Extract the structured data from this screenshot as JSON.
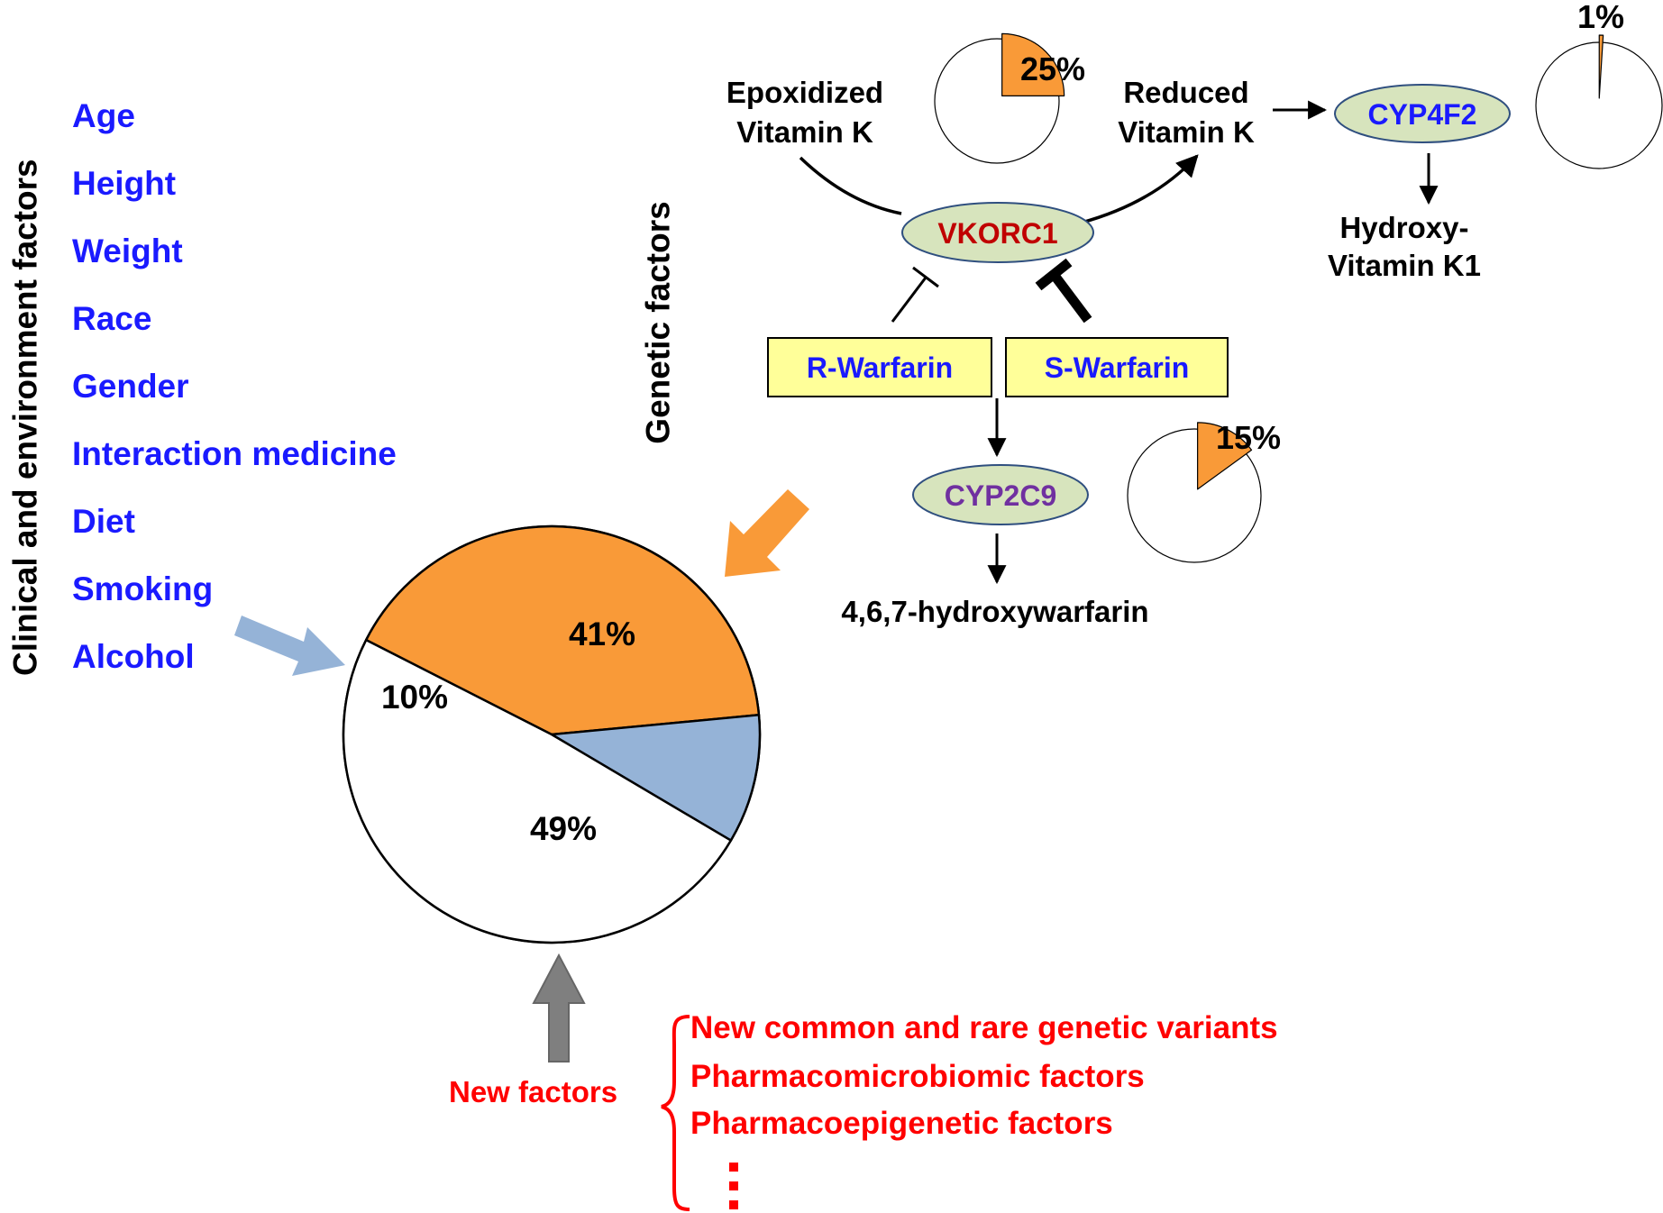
{
  "colors": {
    "genetic": "#f99a38",
    "clinical": "#95b3d7",
    "unknown": "#ffffff",
    "clinical_text": "#1a1aff",
    "new_factor_text": "#ff0000",
    "enzyme_fill": "#d7e4bd",
    "drug_box_fill": "#ffff99",
    "gray_arrow": "#7f7f7f"
  },
  "clinical": {
    "heading": "Clinical and environment factors",
    "items": [
      "Age",
      "Height",
      "Weight",
      "Race",
      "Gender",
      "Interaction medicine",
      "Diet",
      "Smoking",
      "Alcohol"
    ]
  },
  "genetic": {
    "heading": "Genetic factors"
  },
  "pathway": {
    "epoxidized": [
      "Epoxidized",
      "Vitamin K"
    ],
    "reduced": [
      "Reduced",
      "Vitamin K"
    ],
    "hydroxy": [
      "Hydroxy-",
      "Vitamin K1"
    ],
    "hydroxywarfarin": "4,6,7-hydroxywarfarin",
    "vkorc1": "VKORC1",
    "cyp4f2": "CYP4F2",
    "cyp2c9": "CYP2C9",
    "r_warfarin": "R-Warfarin",
    "s_warfarin": "S-Warfarin"
  },
  "new_factors": {
    "label": "New factors",
    "items": [
      "New common and rare genetic variants",
      "Pharmacomicrobiomic factors",
      "Pharmacoepigenetic factors"
    ]
  },
  "chart_data": [
    {
      "type": "pie",
      "slices": [
        {
          "label": "41%",
          "value": 41,
          "color": "#f99a38"
        },
        {
          "label": "10%",
          "value": 10,
          "color": "#95b3d7"
        },
        {
          "label": "49%",
          "value": 49,
          "color": "#ffffff"
        }
      ]
    },
    {
      "type": "pie",
      "slices": [
        {
          "label": "25%",
          "value": 25,
          "color": "#f99a38"
        },
        {
          "value": 75,
          "color": "#ffffff"
        }
      ]
    },
    {
      "type": "pie",
      "slices": [
        {
          "label": "15%",
          "value": 15,
          "color": "#f99a38"
        },
        {
          "value": 85,
          "color": "#ffffff"
        }
      ]
    },
    {
      "type": "pie",
      "slices": [
        {
          "label": "1%",
          "value": 1,
          "color": "#f99a38"
        },
        {
          "value": 99,
          "color": "#ffffff"
        }
      ]
    }
  ]
}
